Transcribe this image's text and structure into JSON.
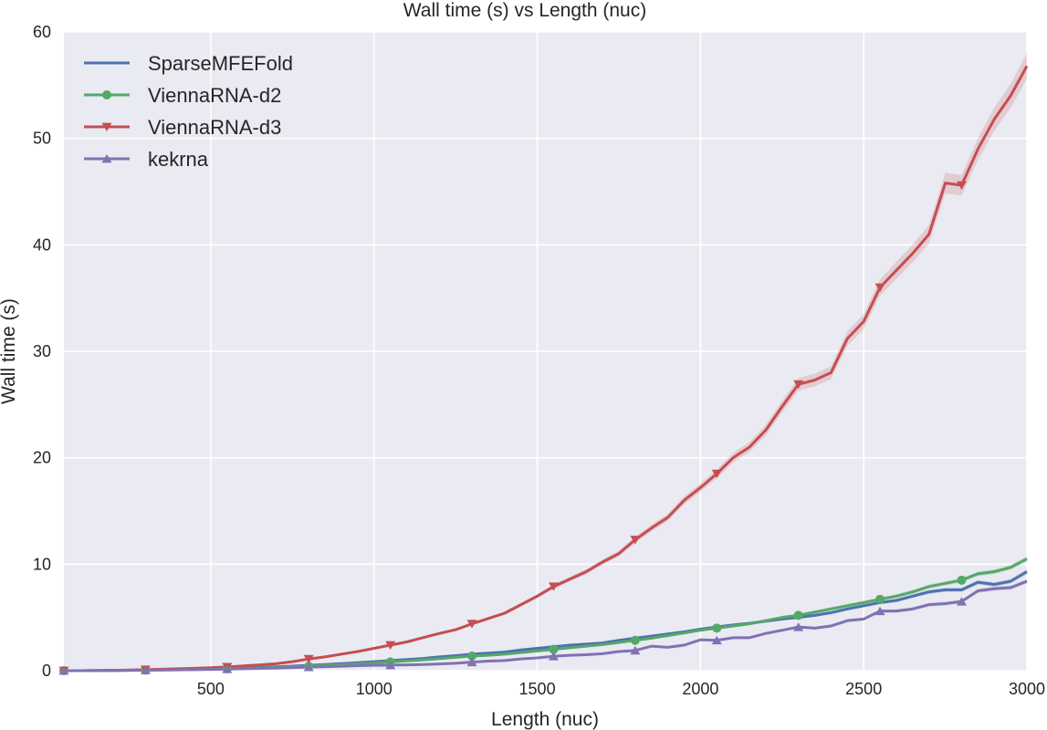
{
  "chart_data": {
    "type": "line",
    "title": "Wall time (s) vs Length (nuc)",
    "xlabel": "Length (nuc)",
    "ylabel": "Wall time (s)",
    "xlim": [
      50,
      3000
    ],
    "ylim": [
      0,
      60
    ],
    "xticks": [
      500,
      1000,
      1500,
      2000,
      2500,
      3000
    ],
    "yticks": [
      0,
      10,
      20,
      30,
      40,
      50,
      60
    ],
    "grid": true,
    "legend_position": "top-left",
    "x": [
      50,
      100,
      150,
      200,
      250,
      300,
      350,
      400,
      450,
      500,
      550,
      600,
      650,
      700,
      750,
      800,
      850,
      900,
      950,
      1000,
      1050,
      1100,
      1150,
      1200,
      1250,
      1300,
      1350,
      1400,
      1450,
      1500,
      1550,
      1600,
      1650,
      1700,
      1750,
      1800,
      1850,
      1900,
      1950,
      2000,
      2050,
      2100,
      2150,
      2200,
      2250,
      2300,
      2350,
      2400,
      2450,
      2500,
      2550,
      2600,
      2650,
      2700,
      2750,
      2800,
      2850,
      2900,
      2950,
      3000
    ],
    "series": [
      {
        "name": "SparseMFEFold",
        "color": "#4c72b0",
        "marker": "none",
        "values": [
          0,
          0,
          0.01,
          0.02,
          0.04,
          0.06,
          0.08,
          0.1,
          0.13,
          0.16,
          0.2,
          0.25,
          0.3,
          0.36,
          0.43,
          0.5,
          0.58,
          0.66,
          0.75,
          0.85,
          0.95,
          1.05,
          1.15,
          1.3,
          1.42,
          1.55,
          1.65,
          1.75,
          1.95,
          2.1,
          2.25,
          2.4,
          2.5,
          2.6,
          2.85,
          3.05,
          3.25,
          3.45,
          3.65,
          3.9,
          4.1,
          4.3,
          4.45,
          4.65,
          4.85,
          5.0,
          5.2,
          5.45,
          5.8,
          6.1,
          6.4,
          6.6,
          7.0,
          7.4,
          7.6,
          7.6,
          8.3,
          8.1,
          8.4,
          9.3
        ]
      },
      {
        "name": "ViennaRNA-d2",
        "color": "#55a868",
        "marker": "circle",
        "values": [
          0,
          0,
          0.01,
          0.02,
          0.03,
          0.05,
          0.07,
          0.09,
          0.11,
          0.14,
          0.17,
          0.21,
          0.25,
          0.3,
          0.36,
          0.42,
          0.49,
          0.56,
          0.64,
          0.73,
          0.82,
          0.92,
          1.02,
          1.13,
          1.25,
          1.37,
          1.45,
          1.55,
          1.7,
          1.85,
          2.0,
          2.15,
          2.3,
          2.45,
          2.65,
          2.85,
          3.05,
          3.3,
          3.55,
          3.8,
          4.0,
          4.2,
          4.4,
          4.7,
          5.0,
          5.2,
          5.5,
          5.8,
          6.1,
          6.4,
          6.7,
          7.0,
          7.4,
          7.9,
          8.2,
          8.5,
          9.1,
          9.3,
          9.7,
          10.5
        ]
      },
      {
        "name": "ViennaRNA-d3",
        "color": "#c44e52",
        "marker": "triangle-down",
        "values": [
          0,
          0,
          0.01,
          0.03,
          0.06,
          0.1,
          0.14,
          0.18,
          0.23,
          0.28,
          0.35,
          0.45,
          0.55,
          0.65,
          0.85,
          1.1,
          1.3,
          1.55,
          1.8,
          2.1,
          2.4,
          2.7,
          3.1,
          3.5,
          3.85,
          4.4,
          4.9,
          5.4,
          6.2,
          7.0,
          7.9,
          8.6,
          9.3,
          10.2,
          11.0,
          12.3,
          13.4,
          14.4,
          16.0,
          17.2,
          18.5,
          20.0,
          21.0,
          22.6,
          24.8,
          26.9,
          27.3,
          28.0,
          31.2,
          32.8,
          36.0,
          37.6,
          39.2,
          41.0,
          45.8,
          45.6,
          49.0,
          51.8,
          54.0,
          56.8
        ]
      },
      {
        "name": "kekrna",
        "color": "#8172b2",
        "marker": "triangle-up",
        "values": [
          0,
          0,
          0.01,
          0.02,
          0.03,
          0.04,
          0.06,
          0.08,
          0.1,
          0.12,
          0.15,
          0.18,
          0.21,
          0.25,
          0.29,
          0.33,
          0.37,
          0.42,
          0.47,
          0.5,
          0.52,
          0.55,
          0.58,
          0.63,
          0.7,
          0.8,
          0.9,
          0.95,
          1.1,
          1.2,
          1.35,
          1.45,
          1.5,
          1.6,
          1.8,
          1.9,
          2.3,
          2.2,
          2.4,
          2.9,
          2.85,
          3.1,
          3.1,
          3.5,
          3.8,
          4.1,
          4.0,
          4.2,
          4.7,
          4.85,
          5.6,
          5.6,
          5.8,
          6.2,
          6.3,
          6.5,
          7.5,
          7.7,
          7.8,
          8.4
        ]
      }
    ]
  }
}
